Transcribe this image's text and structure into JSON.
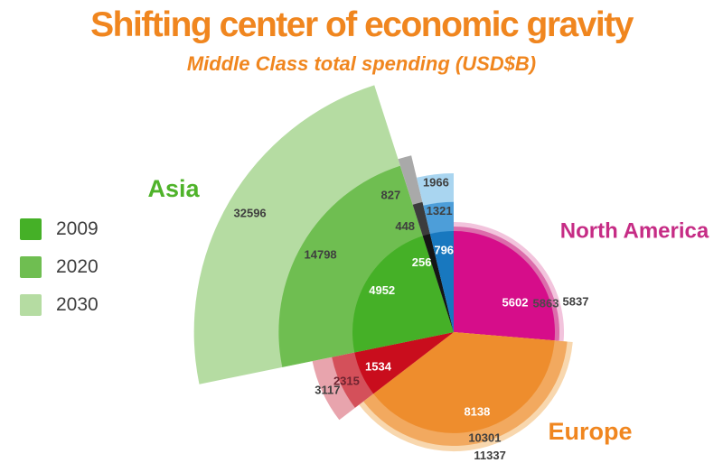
{
  "title": "Shifting center of economic gravity",
  "subtitle": "Middle Class total spending (USD$B)",
  "colors": {
    "background": "#ffffff",
    "title_text": "#f0861f",
    "subtitle_text": "#f0861f",
    "legend_text": "#3e3e3e",
    "value_text_dark": "#3f3f3f",
    "value_text_light": "#ffffff"
  },
  "legend": {
    "position": "middle-left",
    "items": [
      {
        "label": "2009",
        "color": "#45b027"
      },
      {
        "label": "2020",
        "color": "#6fbe51"
      },
      {
        "label": "2030",
        "color": "#b5dca2"
      }
    ]
  },
  "chart_data": {
    "type": "polar-area-rose",
    "unit": "USD$B",
    "years": [
      "2009",
      "2020",
      "2030"
    ],
    "angle_rule": "wedge angle proportional to 2009 value, starting at 12 o'clock, clockwise",
    "radius_rule": "radius proportional to sqrt(value), normalized so every region's 2009 wedge has equal radius",
    "regions": [
      {
        "id": "north-america",
        "label": "North America",
        "label_color": "#c62c85",
        "values": {
          "2009": 5602,
          "2020": 5863,
          "2030": 5837
        },
        "colors": {
          "2009": "#d60d8a",
          "2020": "#dc6cab",
          "2030": "#f2c3dc"
        },
        "value_text_colors": [
          "#ffffff",
          "#4a4a4a",
          "#3f3f3f"
        ]
      },
      {
        "id": "europe",
        "label": "Europe",
        "label_color": "#f0861f",
        "values": {
          "2009": 8138,
          "2020": 10301,
          "2030": 11337
        },
        "colors": {
          "2009": "#ee8d2d",
          "2020": "#f2a95f",
          "2030": "#f8d7ae"
        },
        "value_text_colors": [
          "#ffffff",
          "#3f3f3f",
          "#3f3f3f"
        ]
      },
      {
        "id": "red-region",
        "label": "",
        "label_color": "",
        "values": {
          "2009": 1534,
          "2020": 2315,
          "2030": 3117
        },
        "colors": {
          "2009": "#c90d1d",
          "2020": "#d4505a",
          "2030": "#e8a4ad"
        },
        "value_text_colors": [
          "#ffffff",
          "#6e2430",
          "#3f3f3f"
        ]
      },
      {
        "id": "asia",
        "label": "Asia",
        "label_color": "#4fb32a",
        "values": {
          "2009": 4952,
          "2020": 14798,
          "2030": 32596
        },
        "colors": {
          "2009": "#45b027",
          "2020": "#6fbe51",
          "2030": "#b5dca2"
        },
        "value_text_colors": [
          "#ffffff",
          "#3f3f3f",
          "#3f3f3f"
        ]
      },
      {
        "id": "gray-region",
        "label": "",
        "label_color": "",
        "values": {
          "2009": 256,
          "2020": 448,
          "2030": 827
        },
        "colors": {
          "2009": "#151515",
          "2020": "#3c3c3c",
          "2030": "#a9a9a9"
        },
        "value_text_colors": [
          "#ffffff",
          "#3f3f3f",
          "#3f3f3f"
        ]
      },
      {
        "id": "blue-region",
        "label": "",
        "label_color": "",
        "values": {
          "2009": 796,
          "2020": 1321,
          "2030": 1966
        },
        "colors": {
          "2009": "#1878bf",
          "2020": "#4d9ed9",
          "2030": "#a9d5f0"
        },
        "value_text_colors": [
          "#ffffff",
          "#3f3f3f",
          "#3f3f3f"
        ]
      }
    ]
  }
}
